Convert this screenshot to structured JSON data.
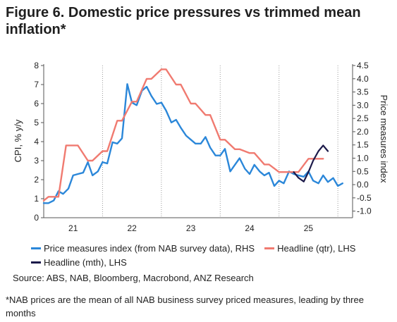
{
  "title": "Figure 6.  Domestic price pressures vs trimmed mean inflation*",
  "source": "Source: ABS, NAB, Bloomberg, Macrobond, ANZ Research",
  "footnote": "*NAB prices are the mean of all NAB business survey priced measures, leading by three months",
  "colors": {
    "price_index": "#2b87d9",
    "headline_qtr": "#f07a70",
    "headline_mth": "#1c1a4a",
    "axis": "#555555",
    "grid": "#9a9a9a"
  },
  "chart_data": {
    "type": "line",
    "xlabel": "",
    "x_tick_labels": [
      "21",
      "22",
      "23",
      "24",
      "25"
    ],
    "x_tick_positions": [
      2021.0,
      2022.0,
      2023.0,
      2024.0,
      2025.0
    ],
    "x_boundaries": [
      2020.5,
      2021.5,
      2022.5,
      2023.5,
      2024.5,
      2025.5
    ],
    "xlim": [
      2020.5,
      2025.75
    ],
    "y_left": {
      "label": "CPI, % y/y",
      "ylim": [
        0,
        8
      ],
      "ticks": [
        0,
        1,
        2,
        3,
        4,
        5,
        6,
        7,
        8
      ]
    },
    "y_right": {
      "label": "Price measures index",
      "ylim": [
        -1.25,
        4.5
      ],
      "ticks": [
        -1.0,
        -0.5,
        0.0,
        0.5,
        1.0,
        1.5,
        2.0,
        2.5,
        3.0,
        3.5,
        4.0,
        4.5
      ],
      "tick_labels": [
        "-1.0",
        "-0.5",
        "0.0",
        "0.5",
        "1.0",
        "1.5",
        "2.0",
        "2.5",
        "3.0",
        "3.5",
        "4.0",
        "4.5"
      ]
    },
    "series": [
      {
        "name": "Price measures index (from NAB survey data), RHS",
        "key": "price_index",
        "axis": "right",
        "style": "line",
        "x": [
          2020.5,
          2020.58,
          2020.67,
          2020.75,
          2020.83,
          2020.92,
          2021.0,
          2021.08,
          2021.17,
          2021.25,
          2021.33,
          2021.42,
          2021.5,
          2021.58,
          2021.67,
          2021.75,
          2021.83,
          2021.92,
          2022.0,
          2022.08,
          2022.17,
          2022.25,
          2022.33,
          2022.42,
          2022.5,
          2022.58,
          2022.67,
          2022.75,
          2022.83,
          2022.92,
          2023.0,
          2023.08,
          2023.17,
          2023.25,
          2023.33,
          2023.42,
          2023.5,
          2023.58,
          2023.67,
          2023.75,
          2023.83,
          2023.92,
          2024.0,
          2024.08,
          2024.17,
          2024.25,
          2024.33,
          2024.42,
          2024.5,
          2024.58,
          2024.67,
          2024.75,
          2024.83,
          2024.92,
          2025.0,
          2025.08,
          2025.17,
          2025.25,
          2025.33,
          2025.42,
          2025.5,
          2025.58
        ],
        "values": [
          -0.7,
          -0.7,
          -0.6,
          -0.25,
          -0.35,
          -0.15,
          0.35,
          0.4,
          0.45,
          0.85,
          0.35,
          0.5,
          0.85,
          0.8,
          1.6,
          1.55,
          1.75,
          3.8,
          3.1,
          3.0,
          3.55,
          3.7,
          3.35,
          3.05,
          3.1,
          2.8,
          2.35,
          2.45,
          2.15,
          1.85,
          1.7,
          1.55,
          1.55,
          1.8,
          1.4,
          1.1,
          1.1,
          1.35,
          0.5,
          0.75,
          1.0,
          0.6,
          0.4,
          0.75,
          0.5,
          0.35,
          0.45,
          -0.05,
          0.15,
          0.05,
          0.5,
          0.4,
          0.35,
          0.3,
          0.5,
          0.15,
          0.05,
          0.35,
          0.1,
          0.25,
          -0.05,
          0.05
        ]
      },
      {
        "name": "Headline (qtr), LHS",
        "key": "headline_qtr",
        "axis": "left",
        "style": "step",
        "x": [
          2020.5,
          2020.58,
          2020.75,
          2020.88,
          2021.08,
          2021.25,
          2021.33,
          2021.5,
          2021.58,
          2021.75,
          2021.83,
          2022.0,
          2022.08,
          2022.25,
          2022.33,
          2022.5,
          2022.58,
          2022.75,
          2022.83,
          2023.0,
          2023.08,
          2023.25,
          2023.33,
          2023.5,
          2023.58,
          2023.75,
          2023.83,
          2024.0,
          2024.08,
          2024.25,
          2024.33,
          2024.5,
          2024.58,
          2024.75,
          2024.83,
          2025.0,
          2025.08,
          2025.25
        ],
        "values": [
          0.9,
          1.1,
          1.1,
          3.8,
          3.8,
          3.0,
          3.0,
          3.5,
          3.5,
          5.1,
          5.1,
          6.1,
          6.1,
          7.3,
          7.3,
          7.8,
          7.8,
          7.0,
          7.0,
          6.0,
          6.0,
          5.4,
          5.4,
          4.1,
          4.1,
          3.6,
          3.6,
          3.4,
          3.4,
          2.8,
          2.8,
          2.4,
          2.4,
          2.4,
          2.4,
          3.1,
          3.1,
          3.1
        ]
      },
      {
        "name": "Headline (mth), LHS",
        "key": "headline_mth",
        "axis": "left",
        "style": "line",
        "x": [
          2024.75,
          2024.83,
          2024.92,
          2025.0,
          2025.08,
          2025.17,
          2025.25,
          2025.33
        ],
        "values": [
          2.4,
          2.1,
          1.9,
          2.4,
          3.0,
          3.5,
          3.8,
          3.5
        ]
      }
    ]
  }
}
